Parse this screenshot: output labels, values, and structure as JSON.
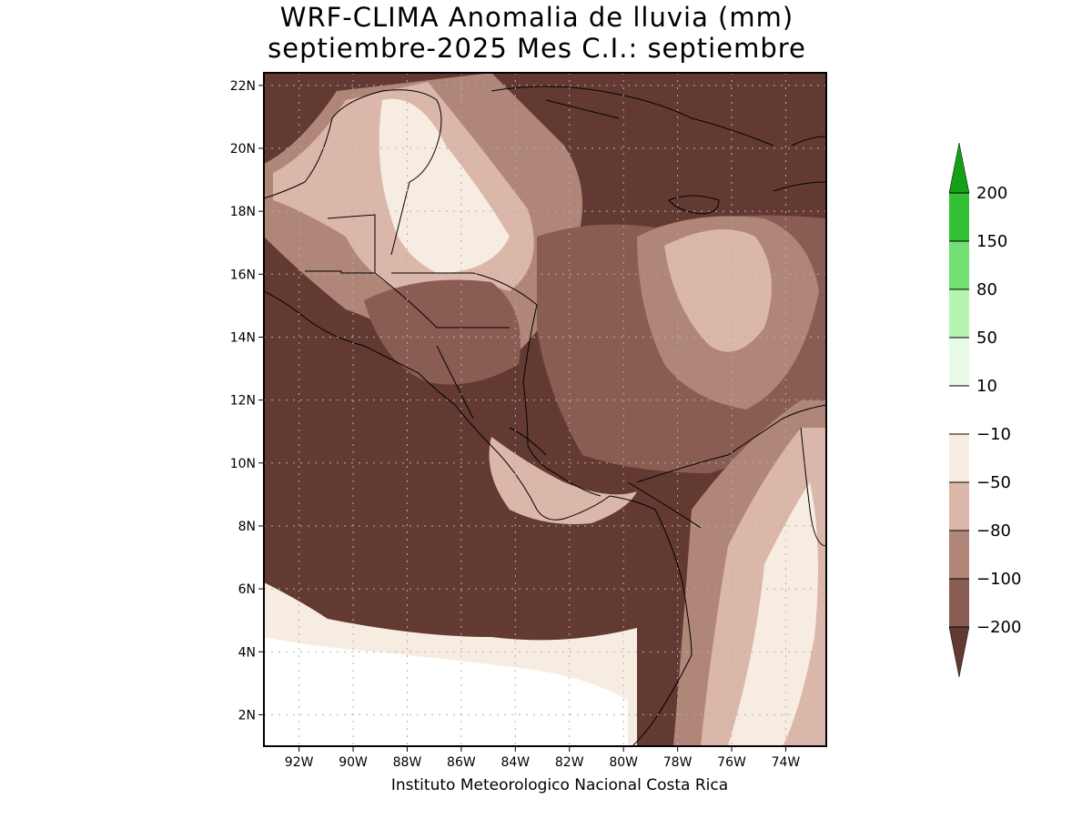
{
  "title": {
    "line1": "WRF-CLIMA Anomalia de lluvia (mm)",
    "line2": "septiembre-2025 Mes C.I.: septiembre"
  },
  "credit": "Instituto Meteorologico Nacional Costa Rica",
  "map": {
    "lat_range": [
      1,
      22.4
    ],
    "lon_range": [
      -93.3,
      -72.5
    ],
    "lat_ticks": [
      "2N",
      "4N",
      "6N",
      "8N",
      "10N",
      "12N",
      "14N",
      "16N",
      "18N",
      "20N",
      "22N"
    ],
    "lon_ticks": [
      "92W",
      "90W",
      "88W",
      "86W",
      "84W",
      "82W",
      "80W",
      "78W",
      "76W",
      "74W"
    ],
    "grid": true
  },
  "colorbar": {
    "labels": [
      "200",
      "150",
      "80",
      "50",
      "10",
      "-10",
      "-50",
      "-80",
      "-100",
      "-200"
    ],
    "colors": {
      "above_200": "#16a016",
      "150_200": "#36c036",
      "80_150": "#72e072",
      "50_80": "#b6f4b0",
      "10_50": "#e8fbe6",
      "m10_10": "#ffffff",
      "m50_m10": "#f7ece1",
      "m80_m50": "#dbb7a9",
      "m100_m80": "#b08679",
      "m200_m100": "#8a5d52",
      "below_m200": "#633a32"
    }
  }
}
